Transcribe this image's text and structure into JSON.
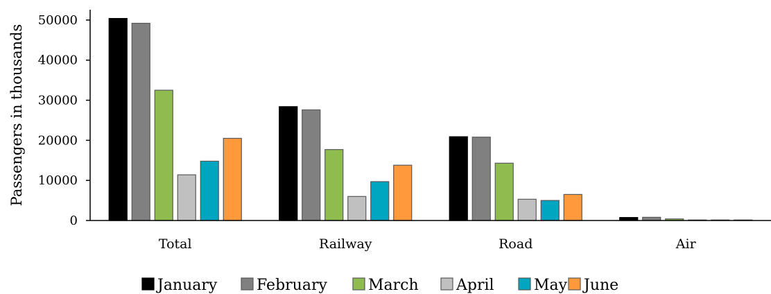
{
  "chart_data": {
    "type": "bar",
    "title": "",
    "xlabel": "",
    "ylabel": "Passengers in thousands",
    "ylim": [
      0,
      55000
    ],
    "yticks": [
      0,
      10000,
      20000,
      30000,
      40000,
      50000
    ],
    "grid": false,
    "legend_position": "bottom",
    "categories": [
      "Total",
      "Railway",
      "Road",
      "Air"
    ],
    "series": [
      {
        "name": "January",
        "color": "#000000",
        "values": [
          50400,
          28400,
          20900,
          750
        ]
      },
      {
        "name": "February",
        "color": "#808080",
        "values": [
          49200,
          27600,
          20800,
          800
        ]
      },
      {
        "name": "March",
        "color": "#8fbc4f",
        "values": [
          32500,
          17700,
          14300,
          400
        ]
      },
      {
        "name": "April",
        "color": "#c0c0c0",
        "values": [
          11400,
          6000,
          5300,
          60
        ]
      },
      {
        "name": "May",
        "color": "#00a6c0",
        "values": [
          14800,
          9700,
          5000,
          40
        ]
      },
      {
        "name": "June",
        "color": "#ff9a3c",
        "values": [
          20500,
          13800,
          6500,
          60
        ]
      }
    ]
  }
}
